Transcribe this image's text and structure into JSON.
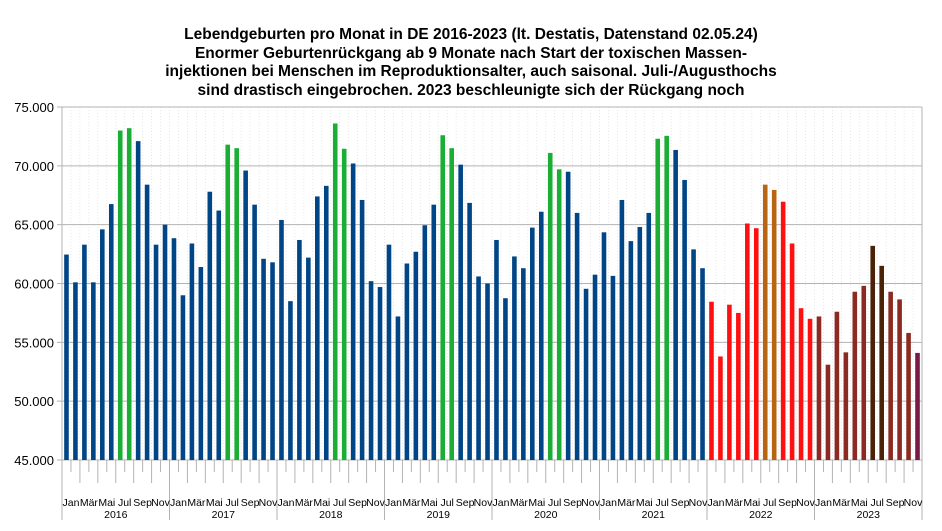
{
  "chart_data": {
    "type": "bar",
    "title_lines": [
      "Lebendgeburten pro Monat in DE 2016-2023 (lt. Destatis, Datenstand 02.05.24)",
      "Enormer Geburtenrückgang ab 9 Monate nach Start der toxischen Massen-",
      "injektionen bei Menschen im Reproduktionsalter, auch saisonal. Juli-/Augusthochs",
      "sind drastisch eingebrochen. 2023 beschleunigte sich der Rückgang noch"
    ],
    "xlabel": "",
    "ylabel": "",
    "ylim": [
      45000,
      75000
    ],
    "yticks": [
      45000,
      50000,
      55000,
      60000,
      65000,
      70000,
      75000
    ],
    "ytick_labels": [
      "45.000",
      "50.000",
      "55.000",
      "60.000",
      "65.000",
      "70.000",
      "75.000"
    ],
    "grid": true,
    "legend": "none",
    "month_tick_labels": [
      "Jan",
      "Mär",
      "Mai",
      "Jul",
      "Sep",
      "Nov"
    ],
    "years": [
      "2016",
      "2017",
      "2018",
      "2019",
      "2020",
      "2021",
      "2022",
      "2023"
    ],
    "colors": {
      "default": "#004586",
      "summer_peak_pre2022": "#1aae34",
      "year_2022": "#ff1010",
      "summer_peak_2022": "#b86410",
      "year_2023": "#8b2a22",
      "summer_peak_2023": "#4a2208",
      "last_month": "#7a1848"
    },
    "series": [
      {
        "year": "2016",
        "values": [
          62460,
          60100,
          63300,
          60100,
          64600,
          66750,
          73000,
          73200,
          72100,
          68400,
          63300,
          65000
        ],
        "colors": [
          "default",
          "default",
          "default",
          "default",
          "default",
          "default",
          "summer_peak_pre2022",
          "summer_peak_pre2022",
          "default",
          "default",
          "default",
          "default"
        ]
      },
      {
        "year": "2017",
        "values": [
          63850,
          59000,
          63400,
          61400,
          67800,
          66200,
          71800,
          71500,
          69600,
          66700,
          62100,
          61800
        ],
        "colors": [
          "default",
          "default",
          "default",
          "default",
          "default",
          "default",
          "summer_peak_pre2022",
          "summer_peak_pre2022",
          "default",
          "default",
          "default",
          "default"
        ]
      },
      {
        "year": "2018",
        "values": [
          65400,
          58500,
          63700,
          62200,
          67400,
          68300,
          73600,
          71450,
          70200,
          67100,
          60200,
          59700
        ],
        "colors": [
          "default",
          "default",
          "default",
          "default",
          "default",
          "default",
          "summer_peak_pre2022",
          "summer_peak_pre2022",
          "default",
          "default",
          "default",
          "default"
        ]
      },
      {
        "year": "2019",
        "values": [
          63300,
          57200,
          61700,
          62700,
          64950,
          66700,
          72600,
          71500,
          70100,
          66850,
          60600,
          60000
        ],
        "colors": [
          "default",
          "default",
          "default",
          "default",
          "default",
          "default",
          "summer_peak_pre2022",
          "summer_peak_pre2022",
          "default",
          "default",
          "default",
          "default"
        ]
      },
      {
        "year": "2020",
        "values": [
          63700,
          58750,
          62300,
          61300,
          64750,
          66100,
          71100,
          69700,
          69500,
          66000,
          59550,
          60750
        ],
        "colors": [
          "default",
          "default",
          "default",
          "default",
          "default",
          "default",
          "summer_peak_pre2022",
          "summer_peak_pre2022",
          "default",
          "default",
          "default",
          "default"
        ]
      },
      {
        "year": "2021",
        "values": [
          64350,
          60650,
          67100,
          63600,
          64800,
          66000,
          72300,
          72550,
          71350,
          68800,
          62900,
          61300
        ],
        "colors": [
          "default",
          "default",
          "default",
          "default",
          "default",
          "default",
          "summer_peak_pre2022",
          "summer_peak_pre2022",
          "default",
          "default",
          "default",
          "default"
        ]
      },
      {
        "year": "2022",
        "values": [
          58450,
          53800,
          58200,
          57500,
          65100,
          64700,
          68400,
          67950,
          66950,
          63400,
          57900,
          57000
        ],
        "colors": [
          "year_2022",
          "year_2022",
          "year_2022",
          "year_2022",
          "year_2022",
          "year_2022",
          "summer_peak_2022",
          "summer_peak_2022",
          "year_2022",
          "year_2022",
          "year_2022",
          "year_2022"
        ]
      },
      {
        "year": "2023",
        "values": [
          57200,
          53100,
          57600,
          54150,
          59300,
          59800,
          63200,
          61500,
          59300,
          58650,
          55800,
          54100
        ],
        "colors": [
          "year_2023",
          "year_2023",
          "year_2023",
          "year_2023",
          "year_2023",
          "year_2023",
          "summer_peak_2023",
          "summer_peak_2023",
          "year_2023",
          "year_2023",
          "year_2023",
          "last_month"
        ]
      }
    ]
  }
}
